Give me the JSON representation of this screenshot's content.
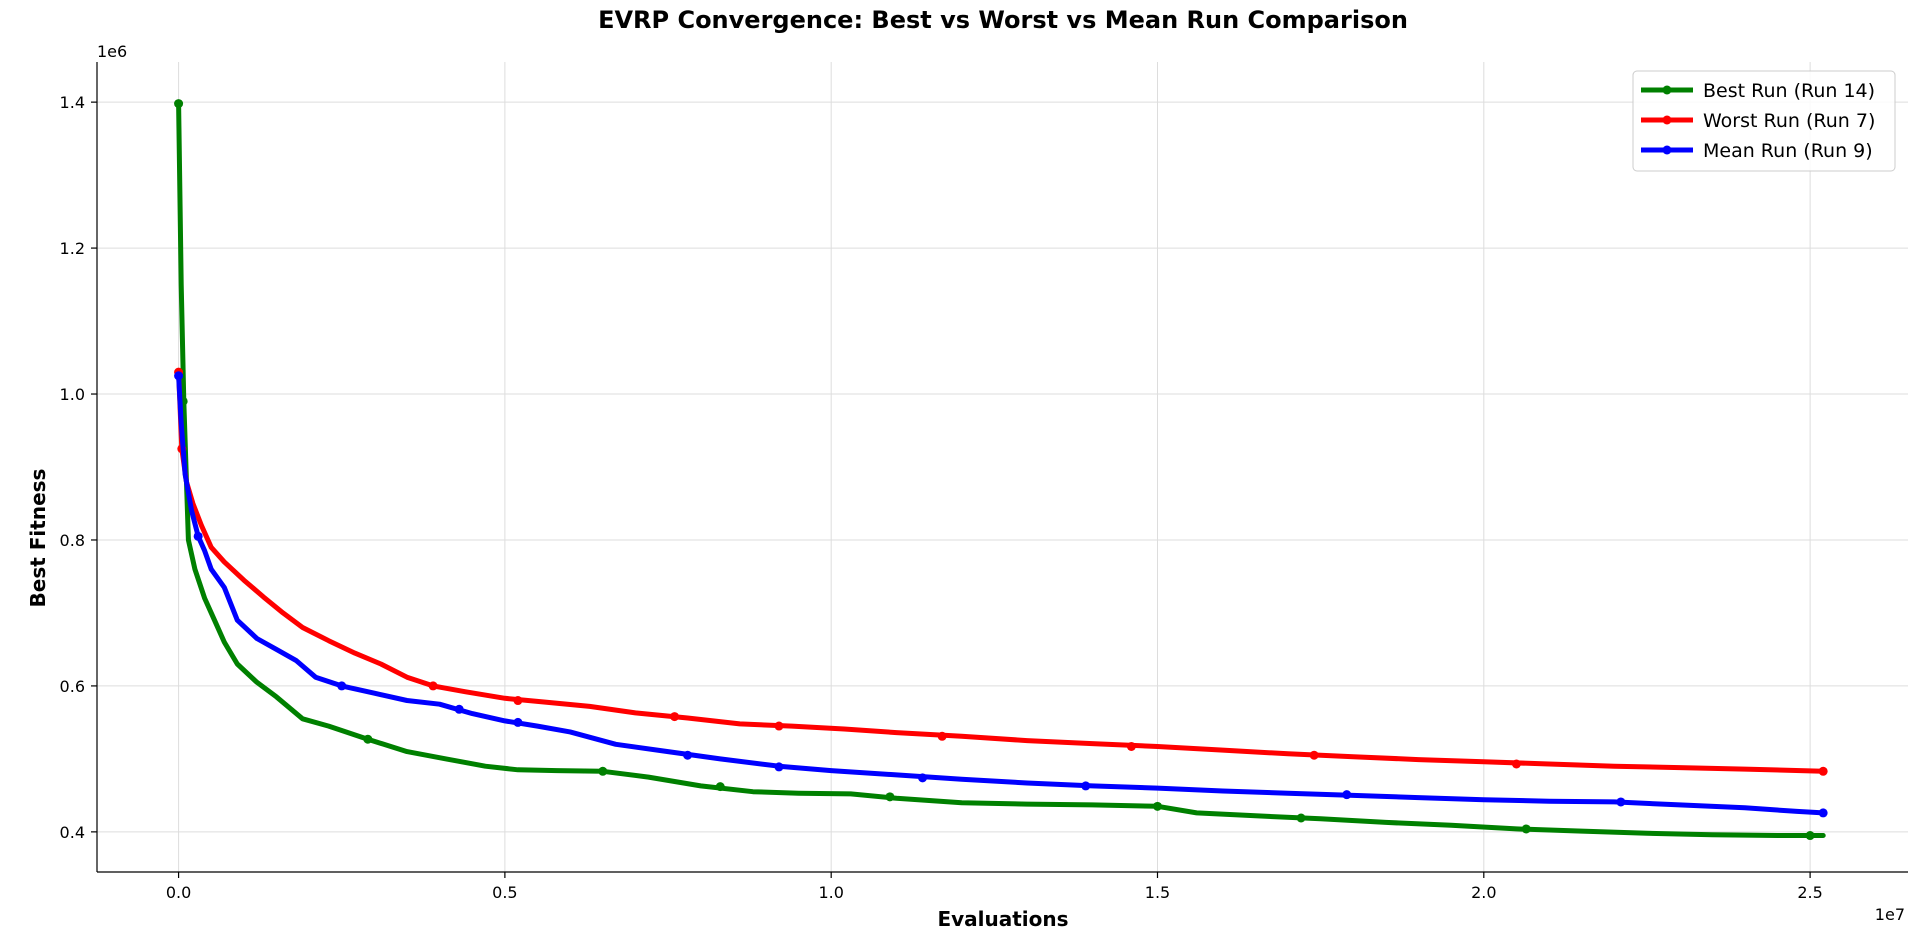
{
  "chart_data": {
    "type": "line",
    "title": "EVRP Convergence: Best vs Worst vs Mean Run Comparison",
    "xlabel": "Evaluations",
    "ylabel": "Best Fitness",
    "x_offset_label": "1e7",
    "y_offset_label": "1e6",
    "xlim": [
      -1250000,
      26500000
    ],
    "ylim": [
      345000,
      1455000
    ],
    "x_ticks": [
      {
        "value": 0,
        "label": "0.0"
      },
      {
        "value": 5000000,
        "label": "0.5"
      },
      {
        "value": 10000000,
        "label": "1.0"
      },
      {
        "value": 15000000,
        "label": "1.5"
      },
      {
        "value": 20000000,
        "label": "2.0"
      },
      {
        "value": 25000000,
        "label": "2.5"
      }
    ],
    "y_ticks": [
      {
        "value": 400000,
        "label": "0.4"
      },
      {
        "value": 600000,
        "label": "0.6"
      },
      {
        "value": 800000,
        "label": "0.8"
      },
      {
        "value": 1000000,
        "label": "1.0"
      },
      {
        "value": 1200000,
        "label": "1.2"
      },
      {
        "value": 1400000,
        "label": "1.4"
      }
    ],
    "grid": true,
    "legend_position": "top-right",
    "series": [
      {
        "name": "Best Run (Run 14)",
        "color": "#008000",
        "x": [
          0,
          40000,
          80000,
          150000,
          250000,
          400000,
          550000,
          700000,
          900000,
          1200000,
          1500000,
          1900000,
          2300000,
          2900000,
          3500000,
          4100000,
          4700000,
          5200000,
          5800000,
          6500000,
          7200000,
          8000000,
          8800000,
          9500000,
          10300000,
          11000000,
          12000000,
          13000000,
          14000000,
          15000000,
          15600000,
          16500000,
          17500000,
          18500000,
          19500000,
          20500000,
          21500000,
          22500000,
          23500000,
          24500000,
          25200000
        ],
        "y": [
          1398000,
          1150000,
          990000,
          800000,
          760000,
          720000,
          690000,
          660000,
          630000,
          605000,
          585000,
          555000,
          545000,
          527000,
          510000,
          500000,
          490000,
          485000,
          484000,
          483000,
          475000,
          463000,
          455000,
          453000,
          452000,
          446000,
          440000,
          438000,
          437000,
          435000,
          426000,
          422000,
          418000,
          413000,
          409000,
          404000,
          401000,
          398000,
          396000,
          395000,
          395000
        ],
        "markers_x": [
          0,
          70000,
          2900000,
          6500000,
          8300000,
          10900000,
          15000000,
          17200000,
          20650000,
          25000000
        ],
        "markers_y": [
          1398000,
          990000,
          527000,
          483000,
          462000,
          448000,
          435000,
          419000,
          404000,
          395000
        ]
      },
      {
        "name": "Worst Run (Run 7)",
        "color": "#ff0000",
        "x": [
          0,
          50000,
          120000,
          220000,
          350000,
          500000,
          700000,
          1000000,
          1300000,
          1600000,
          1900000,
          2300000,
          2700000,
          3100000,
          3500000,
          3900000,
          4400000,
          5000000,
          5600000,
          6300000,
          7000000,
          7800000,
          8600000,
          9400000,
          10200000,
          11000000,
          12000000,
          13000000,
          14000000,
          15000000,
          16000000,
          17000000,
          18000000,
          19000000,
          20000000,
          21000000,
          22000000,
          23000000,
          24000000,
          25200000
        ],
        "y": [
          1030000,
          925000,
          880000,
          850000,
          820000,
          790000,
          770000,
          745000,
          722000,
          700000,
          680000,
          662000,
          645000,
          630000,
          612000,
          600000,
          592000,
          583000,
          578000,
          572000,
          563000,
          556000,
          548000,
          545000,
          541000,
          536000,
          531000,
          525000,
          521000,
          517000,
          512000,
          507000,
          503000,
          499000,
          496000,
          493000,
          490000,
          488000,
          486000,
          483000
        ],
        "markers_x": [
          0,
          50000,
          3900000,
          5200000,
          7600000,
          9200000,
          11700000,
          14600000,
          17400000,
          20500000,
          25200000
        ],
        "markers_y": [
          1030000,
          925000,
          600000,
          580000,
          558000,
          545000,
          531000,
          517000,
          505000,
          493000,
          483000
        ],
        "line_end_marker": true
      },
      {
        "name": "Mean Run (Run 9)",
        "color": "#0000ff",
        "x": [
          0,
          40000,
          100000,
          200000,
          300000,
          400000,
          500000,
          700000,
          900000,
          1200000,
          1500000,
          1800000,
          2100000,
          2500000,
          3000000,
          3500000,
          4000000,
          4500000,
          5000000,
          5500000,
          6000000,
          6700000,
          7500000,
          8300000,
          9200000,
          10000000,
          11000000,
          12000000,
          13000000,
          14000000,
          15000000,
          16000000,
          17000000,
          18000000,
          19000000,
          20000000,
          21000000,
          22000000,
          23000000,
          24000000,
          24800000,
          25200000
        ],
        "y": [
          1025000,
          960000,
          890000,
          840000,
          805000,
          785000,
          760000,
          735000,
          690000,
          665000,
          650000,
          635000,
          612000,
          600000,
          590000,
          580000,
          575000,
          562000,
          552000,
          545000,
          537000,
          520000,
          510000,
          500000,
          490000,
          484000,
          478000,
          472000,
          467000,
          463000,
          460000,
          456000,
          453000,
          450000,
          447000,
          444000,
          442000,
          441000,
          437000,
          433000,
          428000,
          426000
        ],
        "markers_x": [
          0,
          300000,
          2500000,
          4300000,
          5200000,
          7800000,
          9200000,
          11400000,
          13900000,
          17900000,
          22100000,
          25200000
        ],
        "markers_y": [
          1025000,
          805000,
          600000,
          568000,
          550000,
          505000,
          489000,
          474000,
          463000,
          451000,
          441000,
          426000
        ]
      }
    ]
  }
}
